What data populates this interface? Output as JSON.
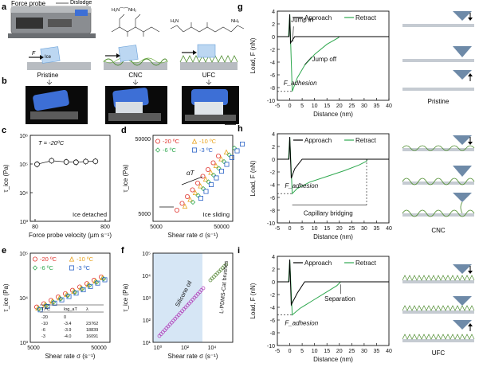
{
  "panel_labels": {
    "a": "a",
    "b": "b",
    "c": "c",
    "d": "d",
    "e": "e",
    "f": "f",
    "g": "g",
    "h": "h",
    "i": "i"
  },
  "panel_a": {
    "device_label": "Force probe",
    "dislodge_label": "Dislodge",
    "force_label": "F",
    "ice_label": "Ice",
    "surfaces": [
      "Pristine",
      "CNC",
      "UFC"
    ],
    "chem_cnc": "Si-O-Si-O-Si-O-Si (NH2 chains)",
    "chem_ufc": "Si-O-Si-O-Si-O-Si (NH2 ends)"
  },
  "panel_b": {
    "photo_count": 3
  },
  "colors": {
    "approach": "#000000",
    "retract": "#2fa84f",
    "c20": "#e0342e",
    "c10": "#e8a21c",
    "c6": "#2fa84f",
    "c3": "#2b63c7",
    "silicone_bg": "#d6e6f5",
    "silicone_pts": "#b03ab8",
    "brush_pts": "#5a8a3a",
    "ice_blue": "#3d6fd6"
  },
  "chart_data": [
    {
      "id": "c",
      "type": "scatter",
      "title": "",
      "xlabel": "Force probe velocity (µm s⁻¹)",
      "ylabel": "τ_ice (Pa)",
      "xlim": [
        0,
        800
      ],
      "ylim_log": [
        3,
        6
      ],
      "xticks": [
        80,
        800
      ],
      "yticks": [
        "10³",
        "10⁴",
        "10⁵",
        "10⁶"
      ],
      "x": [
        100,
        250,
        400,
        500,
        600,
        700
      ],
      "y": [
        98000,
        130000,
        118000,
        115000,
        122000,
        124000
      ],
      "annotation_T": "T = -20ºC",
      "annotation_state": "Ice detached"
    },
    {
      "id": "d",
      "type": "scatter",
      "xlabel": "Shear rate σ (s⁻¹)",
      "ylabel": "τ_ice (Pa)",
      "xticks": [
        "5000",
        "50000"
      ],
      "yticks": [
        "5000",
        "50000"
      ],
      "annotation_alpha": "αT",
      "annotation_state": "Ice sliding",
      "series": [
        {
          "name": "-20 ºC",
          "marker": "circle",
          "color_key": "c20"
        },
        {
          "name": "-10 ºC",
          "marker": "triangle",
          "color_key": "c10"
        },
        {
          "name": "-6 ºC",
          "marker": "diamond",
          "color_key": "c6"
        },
        {
          "name": "-3 ºC",
          "marker": "square",
          "color_key": "c3"
        }
      ]
    },
    {
      "id": "e",
      "type": "scatter",
      "xlabel": "Shear rate σ (s⁻¹)",
      "ylabel": "τ_ice (Pa)",
      "xticks": [
        "5000",
        "50000"
      ],
      "yticks": [
        "10³",
        "10⁴",
        "10⁵"
      ],
      "series": [
        {
          "name": "-20 ºC",
          "marker": "circle",
          "color_key": "c20"
        },
        {
          "name": "-10 ºC",
          "marker": "triangle",
          "color_key": "c10"
        },
        {
          "name": "-6 ºC",
          "marker": "diamond",
          "color_key": "c6"
        },
        {
          "name": "-3 ºC",
          "marker": "square",
          "color_key": "c3"
        }
      ],
      "table": {
        "headers": [
          "T/ºC",
          "log_aT",
          "λ"
        ],
        "rows": [
          [
            "-20",
            "0",
            ""
          ],
          [
            "-10",
            "-3.4",
            "23762"
          ],
          [
            "-6",
            "-3.9",
            "18839"
          ],
          [
            "-3",
            "-4.0",
            "16091"
          ]
        ]
      }
    },
    {
      "id": "f",
      "type": "scatter",
      "xlabel": "Shear rate σ (s⁻¹)",
      "ylabel": "τ_ice (Pa)",
      "xticks": [
        "10⁰",
        "10²",
        "10⁴"
      ],
      "yticks": [
        "10¹",
        "10²",
        "10³",
        "10⁴",
        "10⁵"
      ],
      "region_label": "Silicone oil",
      "brush_label": "L-PDMS-Cat brushes"
    },
    {
      "id": "g",
      "type": "line",
      "xlabel": "Distance (nm)",
      "ylabel": "Load, F (nN)",
      "xlim": [
        -5,
        40
      ],
      "ylim": [
        -10,
        4
      ],
      "xticks": [
        -5,
        0,
        5,
        10,
        15,
        20,
        25,
        30,
        35,
        40
      ],
      "yticks": [
        4,
        2,
        0,
        -2,
        -4,
        -6,
        -8,
        -10
      ],
      "legend": [
        "Approach",
        "Retract"
      ],
      "annotations": [
        "Jump in",
        "Jump off",
        "F_adhesion"
      ],
      "approach_x": [
        -5,
        -0.3,
        0,
        0.3,
        2,
        40
      ],
      "approach_y": [
        0,
        0,
        3.5,
        -1.0,
        0,
        0
      ],
      "retract_x": [
        -5,
        -0.5,
        0,
        1,
        3,
        6,
        10,
        15,
        19.5,
        20,
        40
      ],
      "retract_y": [
        0,
        0,
        3.5,
        -8.6,
        -6.5,
        -4.5,
        -2.8,
        -1.2,
        -0.2,
        0,
        0
      ],
      "surface_label": "Pristine",
      "adhesion_level": -8.6
    },
    {
      "id": "h",
      "type": "line",
      "xlabel": "Distance (nm)",
      "ylabel": "Load, F (nN)",
      "xlim": [
        -5,
        40
      ],
      "ylim": [
        -10,
        4
      ],
      "xticks": [
        -5,
        0,
        5,
        10,
        15,
        20,
        25,
        30,
        35,
        40
      ],
      "yticks": [
        4,
        2,
        0,
        -2,
        -4,
        -6,
        -8,
        -10
      ],
      "legend": [
        "Approach",
        "Retract"
      ],
      "annotations": [
        "F_adhesion",
        "Capillary bridging"
      ],
      "approach_x": [
        -5,
        -0.3,
        0,
        0.6,
        2,
        5,
        40
      ],
      "approach_y": [
        0,
        0,
        3.5,
        -3.0,
        -1.5,
        0,
        0
      ],
      "retract_x": [
        -5,
        -0.5,
        0,
        1,
        3,
        8,
        15,
        22,
        28,
        31,
        31.2,
        40
      ],
      "retract_y": [
        0,
        0,
        3.5,
        -5.4,
        -4.6,
        -3.6,
        -2.7,
        -1.8,
        -0.9,
        -0.3,
        0,
        0
      ],
      "surface_label": "CNC",
      "adhesion_level": -5.4,
      "bridge_end": 31
    },
    {
      "id": "i",
      "type": "line",
      "xlabel": "Distance (nm)",
      "ylabel": "Load, F (nN)",
      "xlim": [
        -5,
        40
      ],
      "ylim": [
        -10,
        4
      ],
      "xticks": [
        -5,
        0,
        5,
        10,
        15,
        20,
        25,
        30,
        35,
        40
      ],
      "yticks": [
        4,
        2,
        0,
        -2,
        -4,
        -6,
        -8,
        -10
      ],
      "legend": [
        "Approach",
        "Retract"
      ],
      "annotations": [
        "Separation",
        "F_adhesion"
      ],
      "approach_x": [
        -5,
        -0.3,
        0,
        0.6,
        3,
        6,
        40
      ],
      "approach_y": [
        0,
        0,
        3.5,
        -3.6,
        -1.8,
        0,
        0
      ],
      "retract_x": [
        -5,
        -0.5,
        0,
        1,
        4,
        9,
        14,
        19,
        20.5,
        40
      ],
      "retract_y": [
        0,
        0,
        3.5,
        -5.2,
        -4.2,
        -3.0,
        -1.8,
        -0.6,
        0,
        0
      ],
      "surface_label": "UFC",
      "adhesion_level": -5.2
    }
  ]
}
